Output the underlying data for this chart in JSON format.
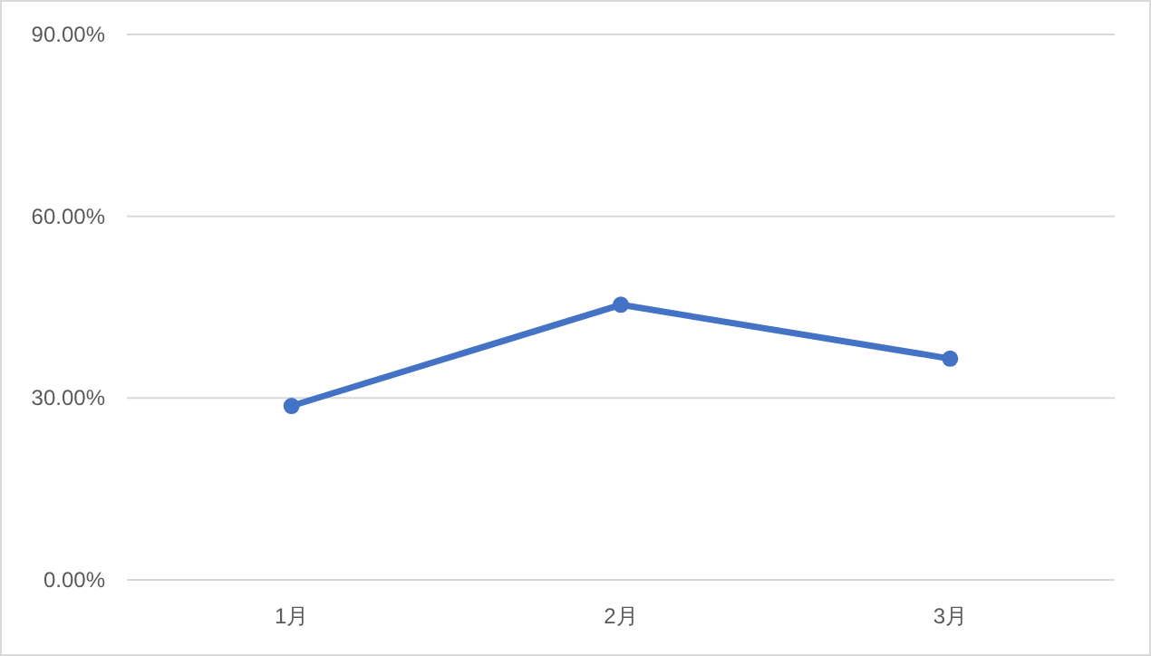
{
  "chart_data": {
    "type": "line",
    "categories": [
      "1月",
      "2月",
      "3月"
    ],
    "series": [
      {
        "color": "#4472c4",
        "values": [
          28.7,
          45.4,
          36.5
        ]
      }
    ],
    "ylim": [
      0,
      90
    ],
    "yticks": [
      {
        "value": 0,
        "label": "0.00%"
      },
      {
        "value": 30,
        "label": "30.00%"
      },
      {
        "value": 60,
        "label": "60.00%"
      },
      {
        "value": 90,
        "label": "90.00%"
      }
    ],
    "grid": "y",
    "marker": "circle",
    "line_style": "solid"
  }
}
